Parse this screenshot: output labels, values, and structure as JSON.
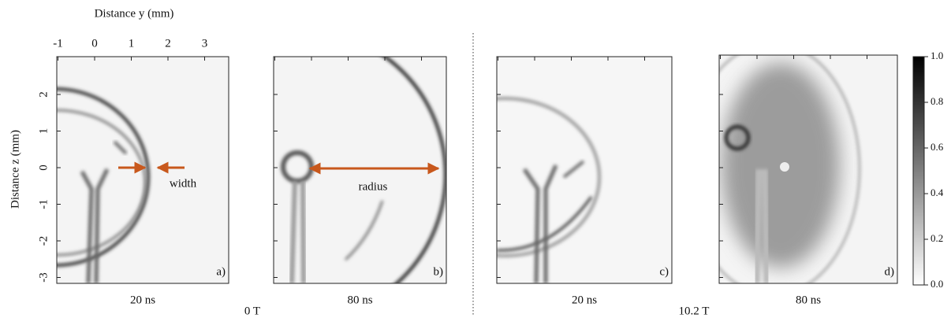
{
  "x_axis": {
    "label": "Distance y (mm)",
    "ticks": [
      -1,
      0,
      1,
      2,
      3
    ]
  },
  "z_axis": {
    "label": "Distance z (mm)",
    "ticks": [
      2,
      1,
      0,
      -1,
      -2,
      -3
    ]
  },
  "panels": [
    {
      "tag": "a)",
      "time": "20 ns"
    },
    {
      "tag": "b)",
      "time": "80 ns"
    },
    {
      "tag": "c)",
      "time": "20 ns"
    },
    {
      "tag": "d)",
      "time": "80 ns"
    }
  ],
  "fields": [
    "0 T",
    "10.2 T"
  ],
  "annotations": [
    "width",
    "radius"
  ],
  "colorbar": {
    "ticks": [
      {
        "value": 0,
        "label": "0.0"
      },
      0.2,
      0.4,
      0.6,
      0.8,
      {
        "value": 1,
        "label": "1.0"
      }
    ]
  }
}
